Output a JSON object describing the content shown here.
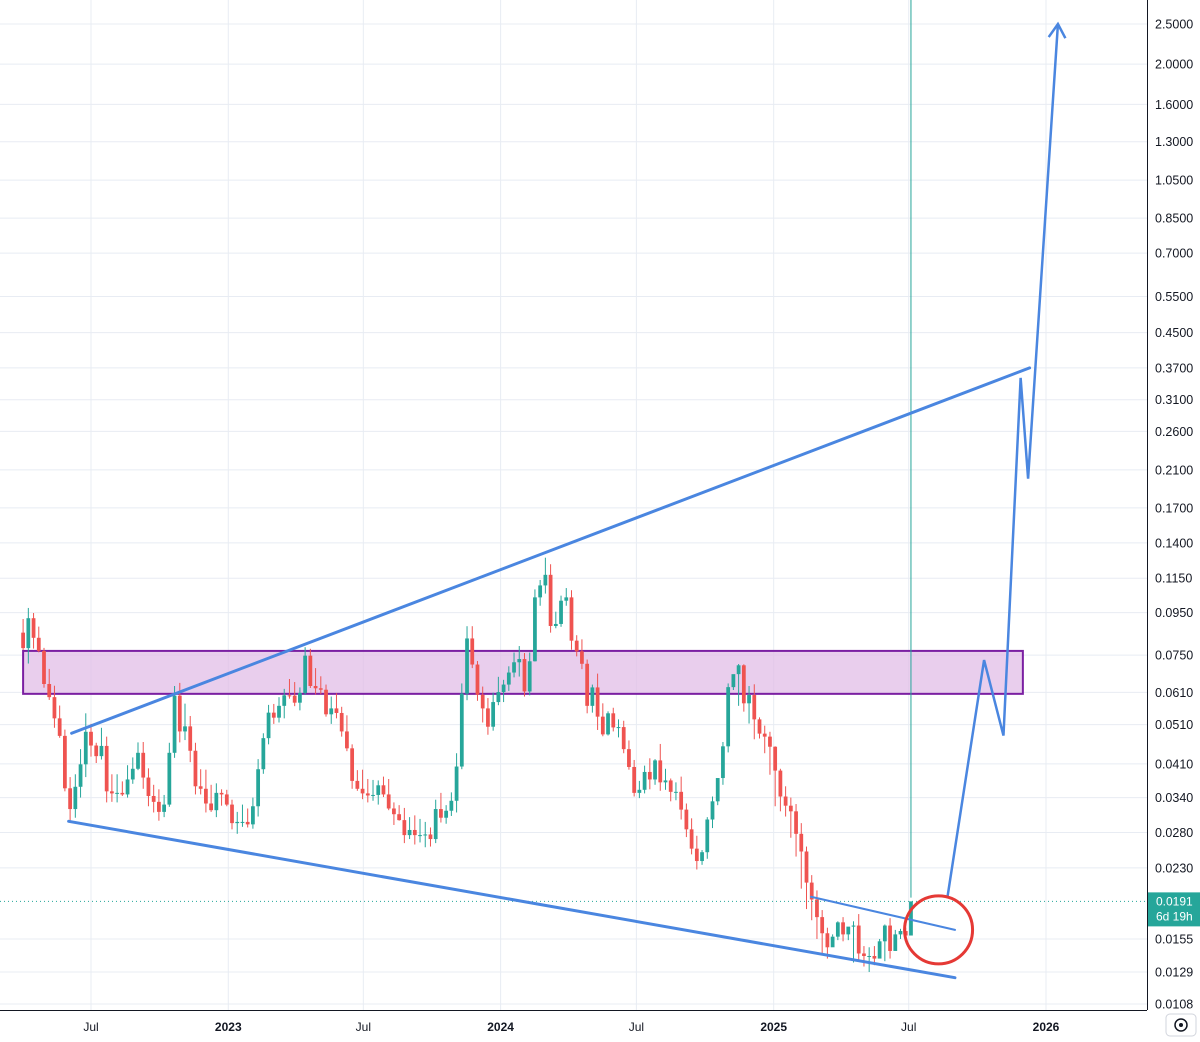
{
  "chart_data": {
    "type": "candlestick",
    "y_scale": "log",
    "ylim": [
      0.0104,
      2.8
    ],
    "y_ticks": [
      "2.5000",
      "2.0000",
      "1.6000",
      "1.3000",
      "1.0500",
      "0.8500",
      "0.7000",
      "0.5500",
      "0.4500",
      "0.3700",
      "0.3100",
      "0.2600",
      "0.2100",
      "0.1700",
      "0.1400",
      "0.1150",
      "0.0950",
      "0.0750",
      "0.0610",
      "0.0510",
      "0.0410",
      "0.0340",
      "0.0280",
      "0.0230",
      "0.0155",
      "0.0129",
      "0.0108"
    ],
    "x_ticks": [
      {
        "label": "Jul",
        "date": "2022-07-01",
        "bold": false
      },
      {
        "label": "2023",
        "date": "2023-01-01",
        "bold": true
      },
      {
        "label": "Jul",
        "date": "2023-07-01",
        "bold": false
      },
      {
        "label": "2024",
        "date": "2024-01-01",
        "bold": true
      },
      {
        "label": "Jul",
        "date": "2024-07-01",
        "bold": false
      },
      {
        "label": "2025",
        "date": "2025-01-01",
        "bold": true
      },
      {
        "label": "Jul",
        "date": "2025-07-01",
        "bold": false
      },
      {
        "label": "2026",
        "date": "2026-01-01",
        "bold": true
      }
    ],
    "xlim": [
      "2022-04-01",
      "2026-04-01"
    ],
    "current_price": {
      "value": "0.0191",
      "countdown": "6d 19h",
      "color": "#26a69a"
    },
    "candle_colors": {
      "up": "#26a69a",
      "down": "#ef5350"
    },
    "candles_weekly": {
      "start": "2022-04-01",
      "step_days": 7,
      "opens": [
        0.085,
        0.078,
        0.0921,
        0.0826,
        0.0768,
        0.0639,
        0.0594,
        0.0528,
        0.0479,
        0.0358,
        0.0319,
        0.0361,
        0.0409,
        0.049,
        0.0454,
        0.0428,
        0.0453,
        0.0352,
        0.0348,
        0.0349,
        0.0346,
        0.0376,
        0.0399,
        0.0436,
        0.038,
        0.0343,
        0.0332,
        0.0314,
        0.0327,
        0.0436,
        0.0599,
        0.0491,
        0.0505,
        0.0441,
        0.0362,
        0.0357,
        0.0329,
        0.0317,
        0.0349,
        0.0346,
        0.0327,
        0.0295,
        0.0297,
        0.0297,
        0.0293,
        0.0324,
        0.0398,
        0.0473,
        0.0545,
        0.053,
        0.0566,
        0.06,
        0.0599,
        0.0576,
        0.0608,
        0.0748,
        0.0632,
        0.0624,
        0.0619,
        0.054,
        0.0558,
        0.0544,
        0.0491,
        0.0447,
        0.0373,
        0.0357,
        0.0348,
        0.0344,
        0.0345,
        0.0364,
        0.0346,
        0.032,
        0.031,
        0.03,
        0.0276,
        0.0284,
        0.0276,
        0.0276,
        0.0277,
        0.027,
        0.0319,
        0.0304,
        0.0316,
        0.0334,
        0.0404,
        0.0606,
        0.0823,
        0.0712,
        0.0602,
        0.0558,
        0.0504,
        0.0578,
        0.0611,
        0.0637,
        0.0681,
        0.0721,
        0.0734,
        0.0613,
        0.0725,
        0.1034,
        0.1105,
        0.1172,
        0.0882,
        0.0892,
        0.1015,
        0.1034,
        0.0813,
        0.0766,
        0.0715,
        0.0566,
        0.0627,
        0.0533,
        0.0483,
        0.0543,
        0.0502,
        0.0503,
        0.0445,
        0.0403,
        0.0349,
        0.0355,
        0.0392,
        0.0376,
        0.0418,
        0.037,
        0.0374,
        0.0351,
        0.0351,
        0.0318,
        0.0285,
        0.0256,
        0.0239,
        0.0251,
        0.0301,
        0.0333,
        0.0379,
        0.0452,
        0.0628,
        0.0675,
        0.0709,
        0.0574,
        0.0601,
        0.0525,
        0.0485,
        0.0477,
        0.0451,
        0.0395,
        0.0342,
        0.0325,
        0.0315,
        0.0278,
        0.0252,
        0.0212,
        0.0193,
        0.0175,
        0.016,
        0.0148,
        0.0157,
        0.017,
        0.0159,
        0.0166,
        0.0167,
        0.0143,
        0.0141,
        0.0141,
        0.0139,
        0.0153,
        0.0167,
        0.0145,
        0.0159,
        0.0162,
        0.0158
      ],
      "closes": [
        0.078,
        0.0921,
        0.0826,
        0.0768,
        0.0639,
        0.0594,
        0.0528,
        0.0479,
        0.0358,
        0.0319,
        0.0361,
        0.0409,
        0.049,
        0.0454,
        0.0428,
        0.0453,
        0.0352,
        0.0348,
        0.0349,
        0.0346,
        0.0376,
        0.0399,
        0.0436,
        0.038,
        0.0343,
        0.0332,
        0.0314,
        0.0327,
        0.0436,
        0.0599,
        0.0491,
        0.0505,
        0.0441,
        0.0362,
        0.0357,
        0.0329,
        0.0317,
        0.0349,
        0.0346,
        0.0327,
        0.0295,
        0.0297,
        0.0297,
        0.0293,
        0.0324,
        0.0398,
        0.0473,
        0.0545,
        0.053,
        0.0566,
        0.06,
        0.0599,
        0.0576,
        0.0608,
        0.0748,
        0.0632,
        0.0624,
        0.0619,
        0.054,
        0.0558,
        0.0544,
        0.0491,
        0.0447,
        0.0373,
        0.0357,
        0.0348,
        0.0344,
        0.0345,
        0.0364,
        0.0346,
        0.032,
        0.031,
        0.03,
        0.0276,
        0.0284,
        0.0276,
        0.0276,
        0.0277,
        0.027,
        0.0319,
        0.0304,
        0.0316,
        0.0334,
        0.0404,
        0.0606,
        0.0823,
        0.0712,
        0.0602,
        0.0558,
        0.0504,
        0.0578,
        0.0611,
        0.0637,
        0.0681,
        0.0721,
        0.0734,
        0.0613,
        0.0725,
        0.1034,
        0.1105,
        0.1172,
        0.0882,
        0.0892,
        0.1015,
        0.1034,
        0.0813,
        0.0766,
        0.0715,
        0.0566,
        0.0627,
        0.0533,
        0.0483,
        0.0543,
        0.0502,
        0.0503,
        0.0445,
        0.0403,
        0.0349,
        0.0355,
        0.0392,
        0.0376,
        0.0418,
        0.037,
        0.0374,
        0.0351,
        0.0351,
        0.0318,
        0.0285,
        0.0256,
        0.0239,
        0.0251,
        0.0301,
        0.0333,
        0.0379,
        0.0452,
        0.0628,
        0.0675,
        0.0709,
        0.0574,
        0.0601,
        0.0525,
        0.0485,
        0.0477,
        0.0451,
        0.0395,
        0.0342,
        0.0325,
        0.0315,
        0.0278,
        0.0252,
        0.0212,
        0.0193,
        0.0175,
        0.016,
        0.0148,
        0.0157,
        0.017,
        0.0159,
        0.0166,
        0.0167,
        0.0143,
        0.0141,
        0.0141,
        0.0139,
        0.0153,
        0.0167,
        0.0145,
        0.0159,
        0.0162,
        0.0158,
        0.0191
      ],
      "highs": [
        0.0917,
        0.0975,
        0.0948,
        0.0879,
        0.0781,
        0.0695,
        0.0633,
        0.0567,
        0.0496,
        0.0381,
        0.0387,
        0.0445,
        0.0543,
        0.0512,
        0.0461,
        0.0501,
        0.0477,
        0.0387,
        0.0387,
        0.0372,
        0.0407,
        0.0425,
        0.0462,
        0.0463,
        0.04,
        0.0365,
        0.0356,
        0.0345,
        0.0461,
        0.0632,
        0.0643,
        0.0573,
        0.0535,
        0.0461,
        0.0398,
        0.0397,
        0.0365,
        0.0368,
        0.0356,
        0.0355,
        0.0336,
        0.0314,
        0.0327,
        0.032,
        0.034,
        0.0421,
        0.0486,
        0.0569,
        0.0572,
        0.0594,
        0.0622,
        0.0657,
        0.0646,
        0.0627,
        0.0784,
        0.0777,
        0.0698,
        0.0667,
        0.0637,
        0.0596,
        0.0607,
        0.0563,
        0.0537,
        0.0457,
        0.0396,
        0.0397,
        0.0377,
        0.0375,
        0.0374,
        0.0382,
        0.0377,
        0.0331,
        0.0326,
        0.0321,
        0.0305,
        0.0308,
        0.0302,
        0.0297,
        0.0288,
        0.0336,
        0.0349,
        0.0326,
        0.035,
        0.0435,
        0.0641,
        0.0881,
        0.0881,
        0.0726,
        0.063,
        0.0591,
        0.0609,
        0.0665,
        0.0654,
        0.0705,
        0.0761,
        0.0789,
        0.0759,
        0.0761,
        0.1081,
        0.1139,
        0.1289,
        0.1243,
        0.0955,
        0.1044,
        0.1089,
        0.1076,
        0.0838,
        0.0819,
        0.0732,
        0.0637,
        0.0677,
        0.0574,
        0.0549,
        0.056,
        0.0525,
        0.0521,
        0.0467,
        0.0419,
        0.0373,
        0.0406,
        0.0423,
        0.0421,
        0.0458,
        0.0399,
        0.0378,
        0.037,
        0.0382,
        0.0329,
        0.0303,
        0.0275,
        0.0254,
        0.0305,
        0.0342,
        0.0369,
        0.0463,
        0.0641,
        0.0647,
        0.0714,
        0.0713,
        0.0632,
        0.0638,
        0.0531,
        0.0507,
        0.049,
        0.0452,
        0.0399,
        0.0362,
        0.034,
        0.0328,
        0.0295,
        0.0259,
        0.0221,
        0.0203,
        0.0182,
        0.0165,
        0.0159,
        0.0171,
        0.0175,
        0.0163,
        0.0171,
        0.0178,
        0.0149,
        0.0148,
        0.0149,
        0.0155,
        0.0168,
        0.0174,
        0.0163,
        0.0164,
        0.0165,
        0.0195
      ],
      "lows": [
        0.0772,
        0.0716,
        0.0778,
        0.0762,
        0.0626,
        0.0585,
        0.0501,
        0.0474,
        0.0352,
        0.0299,
        0.0304,
        0.034,
        0.0381,
        0.0427,
        0.0412,
        0.042,
        0.0331,
        0.0332,
        0.0331,
        0.0343,
        0.034,
        0.0367,
        0.0396,
        0.0357,
        0.0324,
        0.0313,
        0.0299,
        0.0305,
        0.0323,
        0.0424,
        0.0462,
        0.0468,
        0.0414,
        0.0346,
        0.0346,
        0.0313,
        0.0314,
        0.0305,
        0.0325,
        0.0324,
        0.0285,
        0.0278,
        0.0289,
        0.0288,
        0.0286,
        0.0306,
        0.0388,
        0.0457,
        0.0512,
        0.0516,
        0.0528,
        0.0589,
        0.0565,
        0.0552,
        0.0601,
        0.0625,
        0.0603,
        0.0604,
        0.0533,
        0.0512,
        0.0528,
        0.0477,
        0.044,
        0.0357,
        0.0353,
        0.0337,
        0.0331,
        0.0334,
        0.0327,
        0.0341,
        0.0317,
        0.0292,
        0.0299,
        0.0264,
        0.027,
        0.0262,
        0.0265,
        0.0258,
        0.0259,
        0.0264,
        0.0296,
        0.0294,
        0.0307,
        0.0313,
        0.0398,
        0.0584,
        0.0698,
        0.0582,
        0.0516,
        0.0482,
        0.0493,
        0.0568,
        0.0578,
        0.0615,
        0.0663,
        0.0666,
        0.0596,
        0.06,
        0.0724,
        0.0987,
        0.1056,
        0.085,
        0.0871,
        0.0878,
        0.0987,
        0.0773,
        0.0745,
        0.0694,
        0.0543,
        0.0545,
        0.0495,
        0.0478,
        0.048,
        0.0491,
        0.0475,
        0.0435,
        0.0397,
        0.0342,
        0.0339,
        0.0348,
        0.0356,
        0.0365,
        0.0353,
        0.0355,
        0.0333,
        0.0335,
        0.0301,
        0.0273,
        0.0248,
        0.0228,
        0.0234,
        0.0242,
        0.0287,
        0.0326,
        0.0365,
        0.0437,
        0.0618,
        0.0566,
        0.0548,
        0.0513,
        0.047,
        0.0472,
        0.0435,
        0.0386,
        0.0324,
        0.0315,
        0.0306,
        0.0272,
        0.0245,
        0.0205,
        0.0183,
        0.0172,
        0.0155,
        0.0142,
        0.0139,
        0.0157,
        0.0154,
        0.0153,
        0.0154,
        0.0136,
        0.0137,
        0.0133,
        0.0129,
        0.0134,
        0.0146,
        0.0137,
        0.0139,
        0.0149,
        0.0155,
        0.0154
      ]
    },
    "zone": {
      "low": 0.0605,
      "high": 0.0768,
      "x_start": "2022-04-01",
      "x_end": "2025-12-01",
      "fill": "#e1bee7",
      "stroke": "#7b1fa2"
    },
    "trendlines": [
      {
        "name": "upper",
        "points": [
          [
            "2022-06-05",
            0.0486
          ],
          [
            "2025-12-10",
            0.37
          ]
        ]
      },
      {
        "name": "lower",
        "points": [
          [
            "2022-06-01",
            0.0298
          ],
          [
            "2025-09-01",
            0.0125
          ]
        ]
      },
      {
        "name": "inner",
        "points": [
          [
            "2025-02-20",
            0.0196
          ],
          [
            "2025-09-01",
            0.0163
          ]
        ]
      }
    ],
    "projection": [
      [
        "2025-08-22",
        0.0196
      ],
      [
        "2025-10-10",
        0.073
      ],
      [
        "2025-11-05",
        0.048
      ],
      [
        "2025-11-28",
        0.35
      ],
      [
        "2025-12-08",
        0.2
      ],
      [
        "2026-01-17",
        2.5
      ]
    ],
    "circle": {
      "date": "2025-08-10",
      "value": 0.0163,
      "color": "#e53935"
    },
    "line_color": "#4a86e0"
  }
}
